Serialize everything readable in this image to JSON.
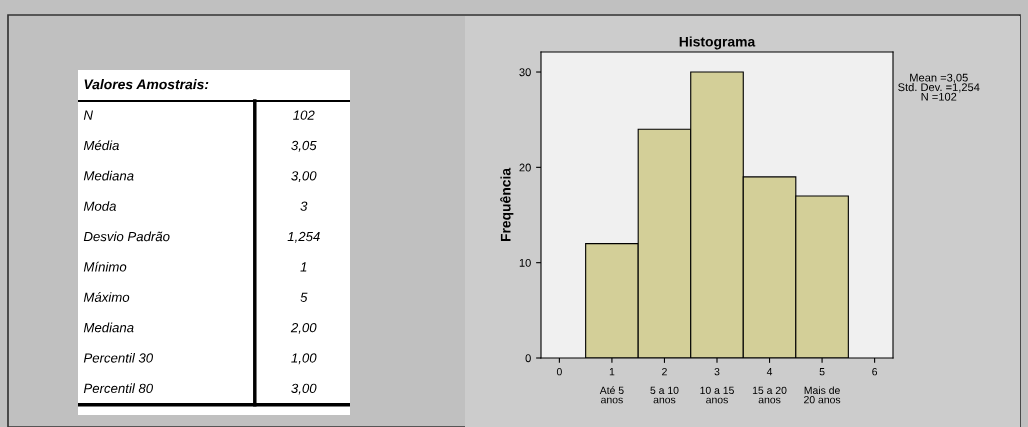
{
  "chart_data": [
    {
      "type": "other",
      "title": "Valores Amostrais:",
      "annotations": [
        "N",
        "102",
        "Média",
        "3,05",
        "Mediana",
        "3,00",
        "Moda",
        "3",
        "Desvio Padrão",
        "1,254",
        "Mínimo",
        "1",
        "Máximo",
        "5",
        "Mediana",
        "2,00",
        "Percentil 30",
        "1,00",
        "Percentil 80",
        "3,00"
      ]
    },
    {
      "type": "histogram",
      "title": "Histograma",
      "ylabel": "Frequência",
      "bins": [
        0.5,
        1.5,
        2.5,
        3.5,
        4.5,
        5.5
      ],
      "values": [
        12,
        24,
        30,
        19,
        17
      ],
      "color": "#d3cf98",
      "xlim": [
        -0.35,
        6.35
      ],
      "ylim": [
        0,
        32.1
      ],
      "xticks": [
        0,
        {
          "value": 1,
          "label": "1\n\nAté 5\nanos"
        },
        {
          "value": 2,
          "label": "2\n\n5 a 10\nanos"
        },
        {
          "value": 3,
          "label": "3\n\n10 a 15\nanos"
        },
        {
          "value": 4,
          "label": "4\n\n15 a 20\nanos"
        },
        {
          "value": 5,
          "label": "5\n\nMais de\n20 anos"
        },
        6
      ],
      "yticks": [
        0,
        10,
        20,
        30
      ],
      "grid": false,
      "annotations": [
        "Mean =3,05\nStd. Dev. =1,254\nN =102"
      ]
    }
  ]
}
